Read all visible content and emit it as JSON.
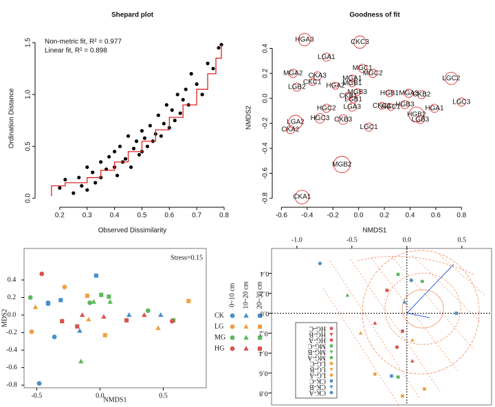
{
  "chart_data": [
    {
      "type": "scatter",
      "title": "Shepard plot",
      "xlabel": "Observed Dissimilarity",
      "ylabel": "Ordination Distance",
      "annotations": [
        "Non-metric fit, R² = 0.977",
        "Linear fit, R² = 0.898"
      ],
      "xlim": [
        0.12,
        0.81
      ],
      "xticks": [
        0.2,
        0.3,
        0.4,
        0.5,
        0.6,
        0.7,
        0.8
      ],
      "ylim": [
        -0.06,
        1.6
      ],
      "yticks": [
        {
          "value": 0,
          "label": "0.0"
        },
        0.5,
        {
          "value": 1,
          "label": "1.0"
        },
        1.5
      ],
      "series": [
        {
          "color": "#000000",
          "x": [
            0.2,
            0.22,
            0.25,
            0.27,
            0.28,
            0.3,
            0.3,
            0.32,
            0.33,
            0.35,
            0.35,
            0.37,
            0.38,
            0.4,
            0.4,
            0.41,
            0.42,
            0.43,
            0.44,
            0.45,
            0.46,
            0.47,
            0.48,
            0.49,
            0.5,
            0.5,
            0.51,
            0.52,
            0.53,
            0.54,
            0.55,
            0.56,
            0.57,
            0.58,
            0.59,
            0.6,
            0.61,
            0.62,
            0.63,
            0.64,
            0.65,
            0.66,
            0.67,
            0.68,
            0.7,
            0.72,
            0.74,
            0.76,
            0.78,
            0.79
          ],
          "values": [
            0.1,
            0.18,
            0.05,
            0.2,
            0.12,
            0.3,
            0.08,
            0.25,
            0.15,
            0.35,
            0.2,
            0.28,
            0.4,
            0.3,
            0.45,
            0.22,
            0.5,
            0.35,
            0.38,
            0.6,
            0.3,
            0.48,
            0.55,
            0.42,
            0.65,
            0.45,
            0.58,
            0.5,
            0.7,
            0.55,
            0.62,
            0.8,
            0.6,
            0.72,
            0.9,
            0.68,
            0.85,
            0.75,
            1.0,
            0.82,
            0.95,
            1.05,
            0.9,
            1.2,
            1.1,
            1.0,
            1.3,
            1.25,
            1.45,
            1.48
          ]
        }
      ],
      "fit": {
        "color": "#e02020",
        "x": [
          0.17,
          0.17,
          0.22,
          0.22,
          0.3,
          0.3,
          0.35,
          0.35,
          0.4,
          0.4,
          0.45,
          0.45,
          0.5,
          0.5,
          0.55,
          0.55,
          0.6,
          0.6,
          0.65,
          0.65,
          0.7,
          0.7,
          0.74,
          0.74,
          0.77,
          0.77,
          0.79,
          0.79
        ],
        "values": [
          0.02,
          0.12,
          0.12,
          0.15,
          0.15,
          0.2,
          0.2,
          0.27,
          0.27,
          0.35,
          0.35,
          0.45,
          0.45,
          0.55,
          0.55,
          0.66,
          0.66,
          0.78,
          0.78,
          0.9,
          0.9,
          1.05,
          1.05,
          1.2,
          1.2,
          1.35,
          1.35,
          1.48
        ]
      }
    },
    {
      "type": "bubble",
      "title": "Goodness of fit",
      "xlabel": "NMDS1",
      "ylabel": "NMDS2",
      "color": "#e03030",
      "xlim": [
        -0.65,
        0.9
      ],
      "xticks": [
        -0.6,
        -0.4,
        -0.2,
        {
          "value": 0,
          "label": "0.0"
        },
        0.2,
        0.4,
        0.6,
        0.8
      ],
      "ylim": [
        -0.85,
        0.54
      ],
      "yticks": [
        -0.8,
        -0.6,
        -0.4,
        -0.2,
        {
          "value": 0,
          "label": "0.0"
        },
        0.2,
        0.4
      ],
      "labels": [
        "HGA3",
        "CKC3",
        "LGA1",
        "MGA2",
        "CKA3",
        "CKC1",
        "LGB2",
        "HGA2",
        "MGC1",
        "MGC2",
        "MGA1",
        "MGB1",
        "MGB3",
        "CKB1",
        "LGB1",
        "HGB1",
        "MGA3",
        "CKB2",
        "LGC2",
        "LGC3",
        "HGC2",
        "LGA3",
        "CKC2",
        "HGC1",
        "HGB3",
        "HGA1",
        "HGB2",
        "LGB3",
        "LGA2",
        "HGC3",
        "CKB3",
        "LGC1",
        "CKA2",
        "MGB2",
        "CKA1"
      ],
      "x": [
        -0.42,
        0.01,
        -0.25,
        -0.51,
        -0.32,
        -0.36,
        -0.48,
        -0.18,
        0.03,
        0.11,
        -0.05,
        -0.05,
        -0.01,
        -0.08,
        -0.04,
        0.24,
        0.39,
        0.49,
        0.72,
        0.8,
        -0.25,
        -0.05,
        0.18,
        0.25,
        0.36,
        0.59,
        0.45,
        0.48,
        -0.49,
        -0.3,
        -0.12,
        0.08,
        -0.53,
        -0.13,
        -0.44
      ],
      "values": [
        0.47,
        0.45,
        0.33,
        0.2,
        0.18,
        0.13,
        0.09,
        0.1,
        0.24,
        0.2,
        0.16,
        0.12,
        0.05,
        0.02,
        -0.01,
        0.04,
        0.04,
        0.03,
        0.16,
        -0.03,
        -0.08,
        -0.07,
        -0.06,
        -0.07,
        -0.05,
        -0.08,
        -0.13,
        -0.17,
        -0.19,
        -0.16,
        -0.17,
        -0.23,
        -0.25,
        -0.53,
        -0.79
      ],
      "sizes": [
        9,
        9,
        6,
        6,
        6,
        5,
        6,
        5,
        6,
        6,
        5,
        5,
        5,
        5,
        5,
        5,
        6,
        6,
        9,
        6,
        6,
        6,
        5,
        5,
        6,
        6,
        11,
        6,
        10,
        7,
        7,
        6,
        6,
        12,
        10
      ]
    },
    {
      "type": "scatter",
      "xlabel": "NMDS1",
      "ylabel": "MDS2",
      "annotations": [
        "Stress=0.15"
      ],
      "xlim": [
        -0.6,
        0.84
      ],
      "xticks": [
        -0.5,
        {
          "value": 0,
          "label": "0.0"
        },
        0.5
      ],
      "ylim": [
        -0.83,
        0.76
      ],
      "yticks": [
        0.4,
        0.2,
        {
          "value": 0,
          "label": "0.0"
        },
        -0.2,
        -0.4,
        -0.6,
        -0.8
      ],
      "depths": [
        "0~10 cm",
        "10~20 cm",
        "20~30 cm"
      ],
      "shapes": [
        "circle",
        "triangle",
        "square"
      ],
      "series": [
        {
          "name": "CK",
          "color": "#4a8fc9",
          "depths": [
            {
              "x": [
                -0.41,
                -0.36,
                -0.48
              ],
              "values": [
                0.14,
                -0.25,
                -0.78
              ]
            },
            {
              "x": [
                -0.16,
                0.23,
                0.48
              ],
              "values": [
                -0.18,
                0,
                0
              ]
            },
            {
              "x": [
                -0.41,
                -0.03,
                -0.31
              ],
              "values": [
                0.13,
                0.45,
                0.17
              ]
            }
          ]
        },
        {
          "name": "LG",
          "color": "#f0a040",
          "depths": [
            {
              "x": [
                -0.28,
                -0.54
              ],
              "values": [
                0.32,
                -0.19
              ]
            },
            {
              "x": [
                -0.51,
                -0.09,
                0.46
              ],
              "values": [
                0.09,
                -0.05,
                -0.15
              ]
            },
            {
              "x": [
                0.04,
                0.7,
                -0.1
              ],
              "values": [
                -0.23,
                0.16,
                0.22
              ]
            }
          ]
        },
        {
          "name": "MG",
          "color": "#5cb85c",
          "depths": [
            {
              "x": [
                -0.55,
                -0.08,
                0.38
              ],
              "values": [
                0.2,
                0.14,
                0.05
              ]
            },
            {
              "x": [
                -0.15,
                0.08,
                -0.05
              ],
              "values": [
                -0.53,
                0.15,
                0.15
              ]
            },
            {
              "x": [
                0.01,
                0.07,
                0.58
              ],
              "values": [
                0.23,
                0.21,
                -0.06
              ]
            }
          ]
        },
        {
          "name": "HG",
          "color": "#d9534f",
          "depths": [
            {
              "x": [
                -0.46,
                0.57
              ],
              "values": [
                0.47,
                -0.07
              ]
            },
            {
              "x": [
                -0.14,
                0.35,
                0.03
              ],
              "values": [
                0,
                0,
                -0.02
              ]
            },
            {
              "x": [
                -0.3,
                0.21,
                -0.18
              ],
              "values": [
                -0.07,
                -0.06,
                -0.13
              ]
            }
          ]
        }
      ]
    },
    {
      "type": "scatter",
      "xlim": [
        -1.23,
        0.77
      ],
      "xticks": [
        {
          "value": -1,
          "label": "-1.0"
        },
        -0.5,
        {
          "value": 0,
          "label": "0.0"
        },
        0.5
      ],
      "ylim": [
        -0.92,
        0.65
      ],
      "yticks": [
        0.4,
        0.2,
        {
          "value": 0,
          "label": "0.0"
        },
        -0.2,
        -0.4,
        -0.6,
        -0.8
      ],
      "series": [
        {
          "name": "CK-A",
          "color": "#4a8fc9",
          "shape": "circle",
          "x": [
            -0.79,
            0.04
          ],
          "values": [
            0.5,
            0.33
          ]
        },
        {
          "name": "CK-B",
          "color": "#4a8fc9",
          "shape": "triangle",
          "x": [
            -0.02
          ],
          "values": [
            0.11
          ]
        },
        {
          "name": "CK-C",
          "color": "#4a8fc9",
          "shape": "square",
          "x": [
            0.45,
            -0.14
          ],
          "values": [
            0,
            -0.63
          ]
        },
        {
          "name": "LG-A",
          "color": "#f0a040",
          "shape": "circle",
          "x": [
            -0.29
          ],
          "values": [
            -0.61
          ]
        },
        {
          "name": "LG-B",
          "color": "#f0a040",
          "shape": "triangle",
          "x": [
            -0.42,
            0.05
          ],
          "values": [
            -0.2,
            -0.27
          ]
        },
        {
          "name": "LG-C",
          "color": "#f0a040",
          "shape": "square",
          "x": [
            -0.04,
            0.16
          ],
          "values": [
            -0.83,
            -0.76
          ]
        },
        {
          "name": "MG-A",
          "color": "#5cb85c",
          "shape": "circle",
          "x": [
            0.14
          ],
          "values": [
            0.32
          ]
        },
        {
          "name": "MG-B",
          "color": "#5cb85c",
          "shape": "triangle",
          "x": [
            -0.54
          ],
          "values": [
            0.18
          ]
        },
        {
          "name": "MG-C",
          "color": "#5cb85c",
          "shape": "square",
          "x": [
            -0.08,
            -0.08
          ],
          "values": [
            0.39,
            -0.64
          ]
        },
        {
          "name": "HG-A",
          "color": "#d9534f",
          "shape": "circle",
          "x": [
            -0.09
          ],
          "values": [
            -0.34
          ]
        },
        {
          "name": "HG-B",
          "color": "#d9534f",
          "shape": "triangle",
          "x": [
            0.05,
            -0.29
          ],
          "values": [
            -0.48,
            -0.1
          ]
        },
        {
          "name": "HG-C",
          "color": "#d9534f",
          "shape": "square",
          "x": [
            -0.18,
            -0.04
          ],
          "values": [
            0.23,
            -0.18
          ]
        }
      ]
    }
  ]
}
